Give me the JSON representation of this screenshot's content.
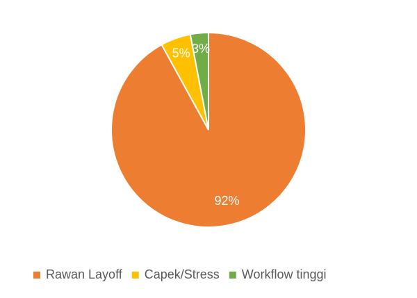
{
  "chart_data": {
    "type": "pie",
    "categories": [
      "Rawan Layoff",
      "Capek/Stress",
      "Workflow tinggi"
    ],
    "values": [
      92,
      5,
      3
    ],
    "value_labels": [
      "92%",
      "5%",
      "3%"
    ],
    "colors": [
      "#ED7D31",
      "#FFC000",
      "#70AD47"
    ],
    "legend": "bottom"
  }
}
